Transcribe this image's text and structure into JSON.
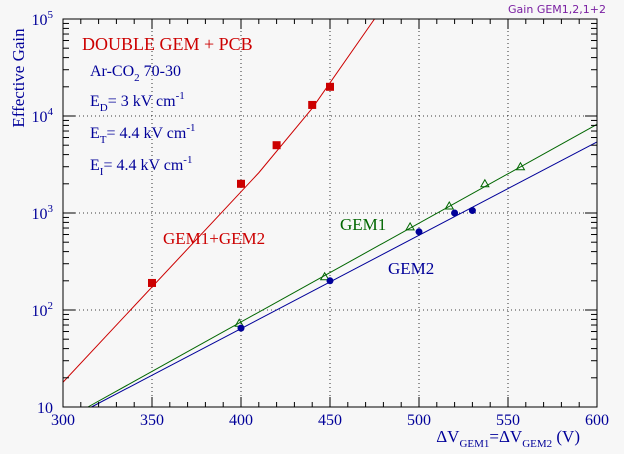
{
  "corner_label": "Gain GEM1,2,1+2",
  "colors": {
    "red": "#cc0000",
    "green": "#006600",
    "blue": "#000099",
    "axis": "#000000",
    "label_blue": "#000099",
    "purple": "#7a1fa2"
  },
  "chart_data": {
    "type": "scatter",
    "title": "DOUBLE GEM + PCB",
    "xlabel": "ΔV_GEM1=ΔV_GEM2 (V)",
    "ylabel": "Effective Gain",
    "xlim": [
      300,
      600
    ],
    "ylim": [
      10,
      100000
    ],
    "log_y": true,
    "grid": true,
    "x_ticks": [
      "300",
      "350",
      "400",
      "450",
      "500",
      "550",
      "600"
    ],
    "y_ticks": [
      {
        "base": "10",
        "exp": ""
      },
      {
        "base": "10",
        "exp": "2"
      },
      {
        "base": "10",
        "exp": "3"
      },
      {
        "base": "10",
        "exp": "4"
      },
      {
        "base": "10",
        "exp": "5"
      }
    ],
    "conditions": [
      {
        "main": "Ar-CO",
        "sub": "2",
        "rest": " 70-30",
        "sup": ""
      },
      {
        "main": "E",
        "sub": "D",
        "rest": "= 3 kV cm",
        "sup": "-1"
      },
      {
        "main": "E",
        "sub": "T",
        "rest": "= 4.4 kV cm",
        "sup": "-1"
      },
      {
        "main": "E",
        "sub": "I",
        "rest": "= 4.4 kV cm",
        "sup": "-1"
      }
    ],
    "series": [
      {
        "name": "GEM1+GEM2",
        "marker": "square",
        "x": [
          350,
          400,
          420,
          440,
          450
        ],
        "y": [
          190,
          2000,
          5000,
          13000,
          20000
        ],
        "fit": [
          [
            300,
            18
          ],
          [
            410,
            2600
          ],
          [
            440,
            12000
          ],
          [
            475,
            100000
          ]
        ]
      },
      {
        "name": "GEM1",
        "marker": "triangle",
        "x": [
          399,
          447,
          495,
          517,
          537,
          557
        ],
        "y": [
          73,
          220,
          720,
          1180,
          2000,
          3000
        ],
        "fit": [
          [
            314,
            10
          ],
          [
            600,
            8200
          ]
        ]
      },
      {
        "name": "GEM2",
        "marker": "circle",
        "x": [
          400,
          450,
          500,
          520,
          530
        ],
        "y": [
          65,
          200,
          640,
          1000,
          1060
        ],
        "fit": [
          [
            316,
            10
          ],
          [
            600,
            5400
          ]
        ]
      }
    ]
  }
}
